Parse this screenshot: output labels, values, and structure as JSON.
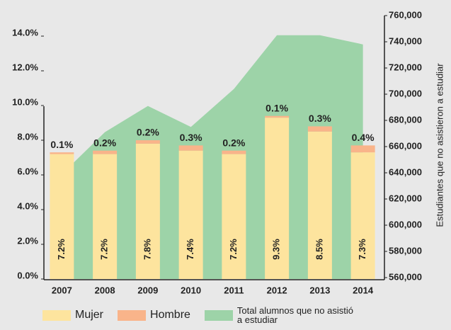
{
  "chart_data": {
    "type": "bar",
    "stacked": true,
    "categories": [
      "2007",
      "2008",
      "2009",
      "2010",
      "2011",
      "2012",
      "2013",
      "2014"
    ],
    "series": [
      {
        "name": "Mujer",
        "color": "#fde49e",
        "values": [
          7.2,
          7.2,
          7.8,
          7.4,
          7.2,
          9.3,
          8.5,
          7.3
        ],
        "value_labels": [
          "7.2%",
          "7.2%",
          "7.8%",
          "7.4%",
          "7.2%",
          "9.3%",
          "8.5%",
          "7.3%"
        ]
      },
      {
        "name": "Hombre",
        "color": "#f9b48a",
        "values": [
          0.1,
          0.2,
          0.2,
          0.3,
          0.2,
          0.1,
          0.3,
          0.4
        ],
        "value_labels": [
          "0.1%",
          "0.2%",
          "0.2%",
          "0.3%",
          "0.2%",
          "0.1%",
          "0.3%",
          "0.4%"
        ]
      },
      {
        "name": "Total alumnos que no asistió a estudiar",
        "color": "#9dd3a8",
        "type": "area",
        "axis": "y2",
        "values": [
          639000,
          671000,
          691000,
          675000,
          704000,
          745000,
          745000,
          738000
        ]
      }
    ],
    "ylim": [
      0,
      14
    ],
    "yticks": [
      {
        "value": 0,
        "label": "0.0%"
      },
      {
        "value": 2,
        "label": "2.0%"
      },
      {
        "value": 4,
        "label": "4.0%"
      },
      {
        "value": 6,
        "label": "6.0%"
      },
      {
        "value": 8,
        "label": "8.0%"
      },
      {
        "value": 10,
        "label": "10.0%"
      },
      {
        "value": 12,
        "label": "12.0%"
      },
      {
        "value": 14,
        "label": "14.0%"
      }
    ],
    "y2lim": [
      560000,
      760000
    ],
    "y2ticks": [
      {
        "value": 560000,
        "label": "560,000"
      },
      {
        "value": 580000,
        "label": "580,000"
      },
      {
        "value": 600000,
        "label": "600,000"
      },
      {
        "value": 620000,
        "label": "620,000"
      },
      {
        "value": 640000,
        "label": "640,000"
      },
      {
        "value": 660000,
        "label": "660,000"
      },
      {
        "value": 680000,
        "label": "680,000"
      },
      {
        "value": 700000,
        "label": "700,000"
      },
      {
        "value": 720000,
        "label": "720,000"
      },
      {
        "value": 740000,
        "label": "740,000"
      },
      {
        "value": 760000,
        "label": "760,000"
      }
    ],
    "y2label": "Estudiantes que no asistieron a estudiar",
    "legend": "bottom"
  }
}
